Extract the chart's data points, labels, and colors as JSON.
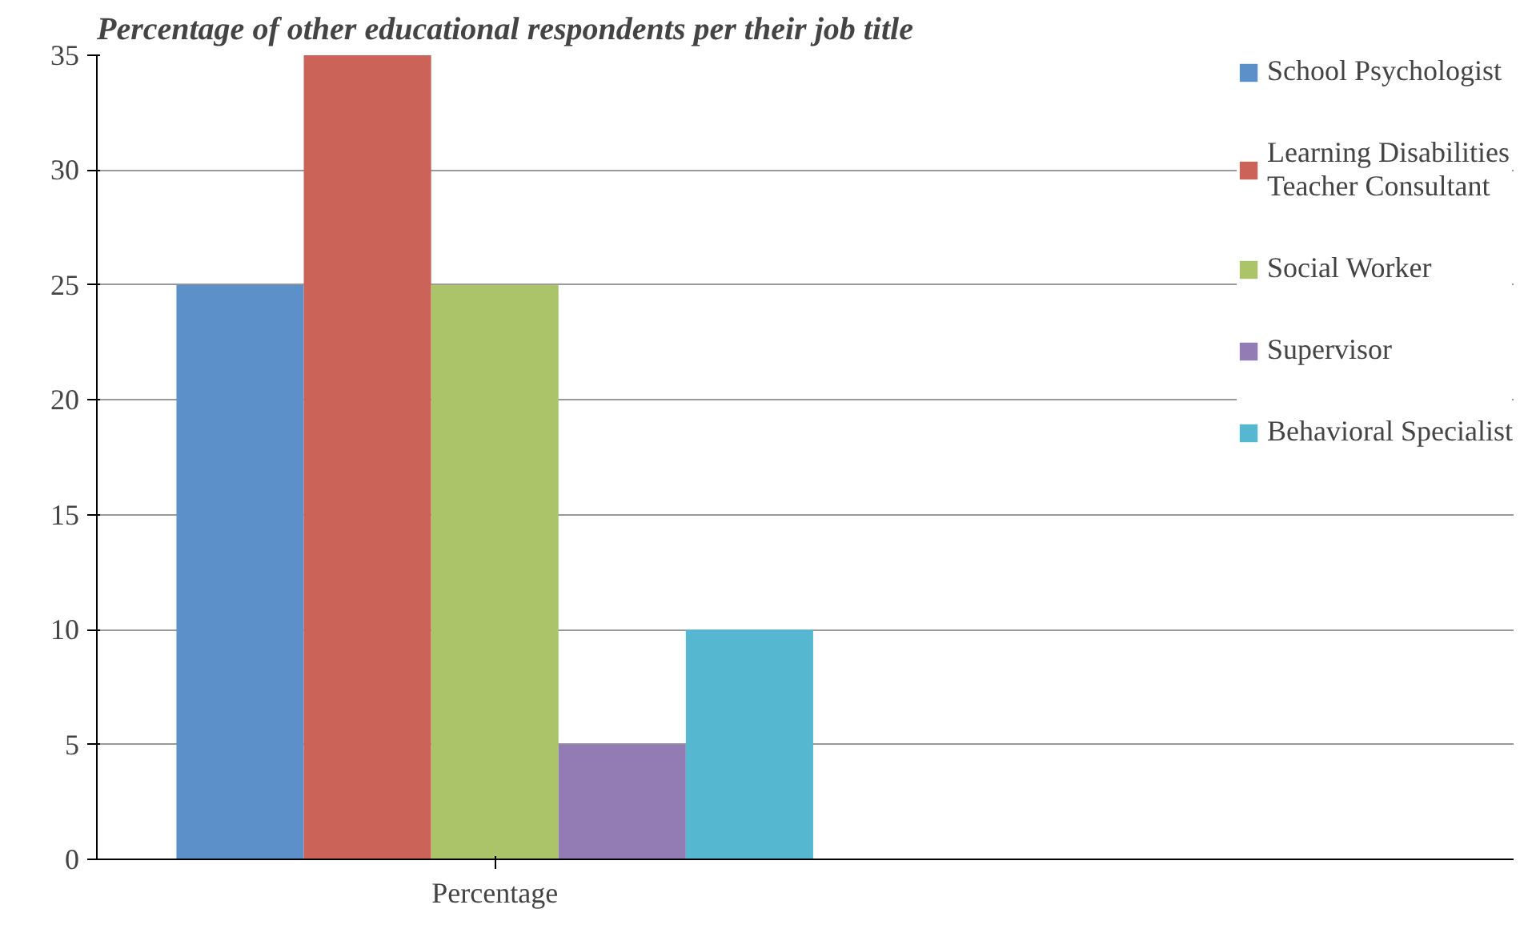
{
  "chart_data": {
    "type": "bar",
    "title": "Percentage of other educational respondents per their job title",
    "categories": [
      "Percentage"
    ],
    "series": [
      {
        "name": "School Psychologist",
        "color": "#5b90c9",
        "values": [
          25
        ]
      },
      {
        "name": "Learning Disabilities Teacher Consultant",
        "color": "#cc6359",
        "values": [
          35
        ]
      },
      {
        "name": "Social Worker",
        "color": "#abc46a",
        "values": [
          25
        ]
      },
      {
        "name": "Supervisor",
        "color": "#927cb3",
        "values": [
          5
        ]
      },
      {
        "name": "Behavioral Specialist",
        "color": "#55b8d0",
        "values": [
          10
        ]
      }
    ],
    "ylim": [
      0,
      35
    ],
    "yticks": [
      0,
      5,
      10,
      15,
      20,
      25,
      30,
      35
    ],
    "grid": "y",
    "legend": "right"
  }
}
